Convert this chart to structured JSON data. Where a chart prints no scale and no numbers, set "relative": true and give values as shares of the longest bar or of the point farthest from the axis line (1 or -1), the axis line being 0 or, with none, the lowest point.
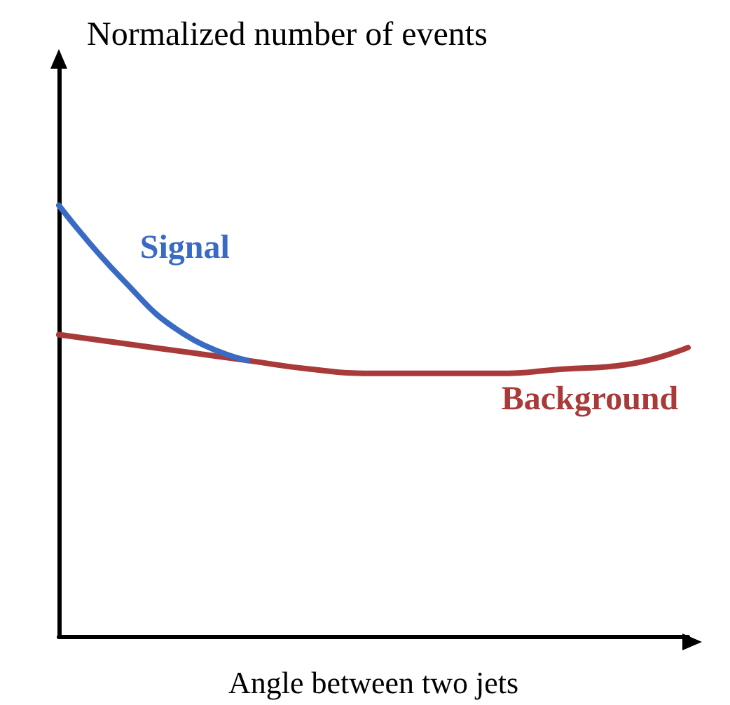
{
  "chart_data": {
    "type": "line",
    "relative": true,
    "xlabel": "Angle between two jets",
    "ylabel": "Normalized number of events",
    "legend": false,
    "categories": [
      null,
      null,
      null,
      null,
      null,
      null,
      null,
      null,
      null,
      null,
      null
    ],
    "series": [
      {
        "name": "Signal",
        "color": "#3a6bc4",
        "values": [
          1.0,
          0.83,
          0.7,
          0.64,
          null,
          null,
          null,
          null,
          null,
          null,
          null
        ]
      },
      {
        "name": "Background",
        "color": "#a83a3a",
        "values": [
          0.7,
          0.68,
          0.66,
          0.64,
          0.62,
          0.61,
          0.61,
          0.61,
          0.62,
          0.63,
          0.67
        ]
      }
    ]
  }
}
